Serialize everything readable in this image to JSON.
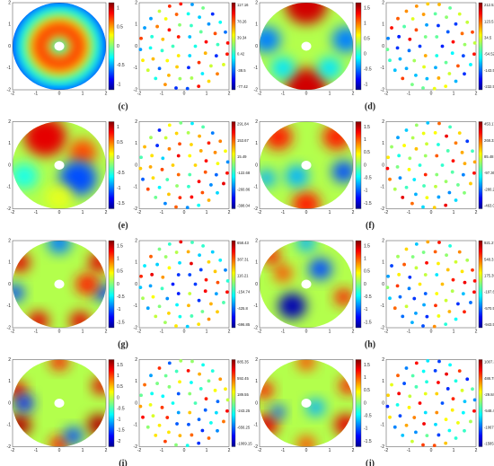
{
  "axis_ticks": [
    "-2",
    "-1",
    "0",
    "1",
    "2"
  ],
  "panels": [
    {
      "label": "(c)",
      "field_colorbar": [
        "1",
        "0.5",
        "0",
        "-0.5",
        "-1"
      ],
      "scatter_colorbar": [
        "117.16",
        "78.26",
        "39.34",
        "0.42",
        "-38.5",
        "-77.42"
      ]
    },
    {
      "label": "(d)",
      "field_colorbar": [
        "1.5",
        "1",
        "0.5",
        "0",
        "-0.5",
        "-1"
      ],
      "scatter_colorbar": [
        "212.53",
        "123.51",
        "34.5",
        "-54.52",
        "-143.53",
        "-232.55"
      ]
    },
    {
      "label": "(e)",
      "field_colorbar": [
        "1",
        "0.5",
        "0",
        "-0.5",
        "-1",
        "-1.5"
      ],
      "scatter_colorbar": [
        "291.84",
        "153.67",
        "15.49",
        "-122.68",
        "-260.86",
        "-398.04"
      ]
    },
    {
      "label": "(f)",
      "field_colorbar": [
        "1.5",
        "1",
        "0.5",
        "0",
        "-0.5",
        "-1",
        "-1.5"
      ],
      "scatter_colorbar": [
        "453.17",
        "268.33",
        "85.48",
        "-97.36",
        "-280.2",
        "-463.05"
      ]
    },
    {
      "label": "(g)",
      "field_colorbar": [
        "1.5",
        "1",
        "0.5",
        "0",
        "-0.5",
        "-1",
        "-1.5"
      ],
      "scatter_colorbar": [
        "658.43",
        "387.31",
        "116.21",
        "-154.74",
        "-425.8",
        "-696.85"
      ]
    },
    {
      "label": "(h)",
      "field_colorbar": [
        "1.5",
        "1",
        "0.5",
        "0",
        "-0.5",
        "-1",
        "-1.5"
      ],
      "scatter_colorbar": [
        "921.27",
        "548.31",
        "175.35",
        "-197.62",
        "-570.58",
        "-943.55"
      ]
    },
    {
      "label": "(i)",
      "field_colorbar": [
        "1.5",
        "1",
        "0.5",
        "0",
        "-0.5",
        "-1",
        "-1.5",
        "-2"
      ],
      "scatter_colorbar": [
        "885.35",
        "592.45",
        "189.55",
        "-243.25",
        "-656.25",
        "-1069.15"
      ]
    },
    {
      "label": "(j)",
      "field_colorbar": [
        "1.5",
        "1",
        "0.5",
        "0",
        "-0.5",
        "-1",
        "-1.5"
      ],
      "scatter_colorbar": [
        "1007.35",
        "488.75",
        "-29.84",
        "-548.44",
        "-1067.04",
        "-1585.64"
      ]
    }
  ]
}
